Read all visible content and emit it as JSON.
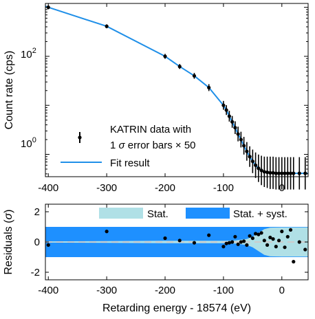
{
  "chart_data": [
    {
      "type": "scatter",
      "xlim": [
        -405,
        45
      ],
      "ylim": [
        0.35,
        1200
      ],
      "y_scale": "log",
      "ylabel": "Count rate (cps)",
      "ytick_labels": [
        {
          "value": 1,
          "label": "10",
          "exp": "0"
        },
        {
          "value": 100,
          "label": "10",
          "exp": "2"
        }
      ],
      "x_ticks": [
        -400,
        -300,
        -200,
        -100,
        0
      ],
      "legend": {
        "position": "bottom-left",
        "data_label_line1": "KATRIN data with",
        "data_label_line2_prefix": "1 ",
        "data_label_sigma": "σ",
        "data_label_line2_suffix": " error bars × 50",
        "fit_label": "Fit result"
      },
      "series": [
        {
          "kind": "data",
          "x": [
            -400,
            -300,
            -200,
            -175,
            -150,
            -125,
            -100,
            -95,
            -90,
            -85,
            -80,
            -75,
            -70,
            -65,
            -60,
            -55,
            -50,
            -45,
            -40,
            -35,
            -30,
            -25,
            -20,
            -15,
            -10,
            -5,
            0,
            5,
            10,
            15,
            20,
            30,
            40
          ],
          "y": [
            1000,
            410,
            100,
            62,
            40,
            23,
            10,
            8.0,
            6.0,
            4.6,
            3.5,
            2.6,
            2.0,
            1.5,
            1.15,
            0.9,
            0.72,
            0.6,
            0.52,
            0.47,
            0.44,
            0.43,
            0.42,
            0.42,
            0.41,
            0.41,
            0.41,
            0.41,
            0.41,
            0.41,
            0.41,
            0.41,
            0.41
          ],
          "err": [
            0.04,
            0.04,
            0.05,
            0.05,
            0.06,
            0.07,
            0.09,
            0.1,
            0.11,
            0.12,
            0.13,
            0.15,
            0.16,
            0.18,
            0.19,
            0.21,
            0.24,
            0.26,
            0.28,
            0.3,
            0.31,
            0.32,
            0.33,
            0.33,
            0.33,
            0.33,
            0.33,
            0.33,
            0.33,
            0.33,
            0.33,
            0.33,
            0.33
          ]
        },
        {
          "kind": "fit",
          "color": "#1f8fe8",
          "x": [
            -405,
            -400,
            -300,
            -200,
            -175,
            -150,
            -125,
            -100,
            -95,
            -90,
            -85,
            -80,
            -75,
            -70,
            -65,
            -60,
            -55,
            -50,
            -45,
            -40,
            -35,
            -30,
            -25,
            -20,
            -15,
            -10,
            -5,
            0,
            10,
            20,
            30,
            45
          ],
          "y": [
            1050,
            1000,
            410,
            100,
            62,
            40,
            23,
            10,
            8.0,
            6.0,
            4.6,
            3.5,
            2.6,
            2.0,
            1.5,
            1.15,
            0.9,
            0.72,
            0.6,
            0.52,
            0.47,
            0.44,
            0.43,
            0.42,
            0.42,
            0.41,
            0.41,
            0.41,
            0.41,
            0.41,
            0.41,
            0.41
          ]
        }
      ]
    },
    {
      "type": "scatter",
      "xlim": [
        -405,
        45
      ],
      "ylim": [
        -2.5,
        2.5
      ],
      "y_ticks": [
        -2,
        0,
        2
      ],
      "x_ticks": [
        -400,
        -300,
        -200,
        -100,
        0
      ],
      "ylabel_prefix": "Residuals (",
      "ylabel_sigma": "σ",
      "ylabel_suffix": ")",
      "xlabel": "Retarding energy - 18574 (eV)",
      "zero_line_color": "#cccccc",
      "legend": {
        "position": "top-right",
        "stat_label": "Stat.",
        "stat_color": "#b0e0e6",
        "syst_label": "Stat. + syst.",
        "syst_color": "#1e90ff"
      },
      "band_syst": {
        "x": [
          -405,
          45
        ],
        "lower": [
          -1,
          -1
        ],
        "upper": [
          1,
          1
        ]
      },
      "band_stat": {
        "x": [
          -405,
          -300,
          -200,
          -100,
          -80,
          -60,
          -50,
          -40,
          -30,
          -20,
          0,
          45
        ],
        "half_width": [
          0.04,
          0.06,
          0.08,
          0.08,
          0.1,
          0.2,
          0.35,
          0.6,
          0.85,
          0.95,
          0.97,
          0.97
        ]
      },
      "residuals": {
        "x": [
          -400,
          -300,
          -200,
          -175,
          -150,
          -125,
          -100,
          -95,
          -90,
          -85,
          -80,
          -75,
          -70,
          -65,
          -60,
          -55,
          -50,
          -45,
          -40,
          -35,
          -30,
          -25,
          -20,
          -15,
          -10,
          -5,
          0,
          5,
          10,
          15,
          20,
          30,
          40
        ],
        "y": [
          -0.2,
          0.7,
          0.25,
          0.1,
          -0.05,
          0.45,
          -0.3,
          -0.1,
          -0.05,
          0.0,
          0.35,
          -0.15,
          0.0,
          0.05,
          -0.2,
          0.4,
          0.25,
          0.55,
          0.5,
          0.6,
          0.1,
          -0.2,
          0.3,
          0.2,
          -0.3,
          0.1,
          0.7,
          -0.35,
          0.35,
          0.8,
          -1.3,
          0.0,
          -0.5
        ]
      }
    }
  ]
}
